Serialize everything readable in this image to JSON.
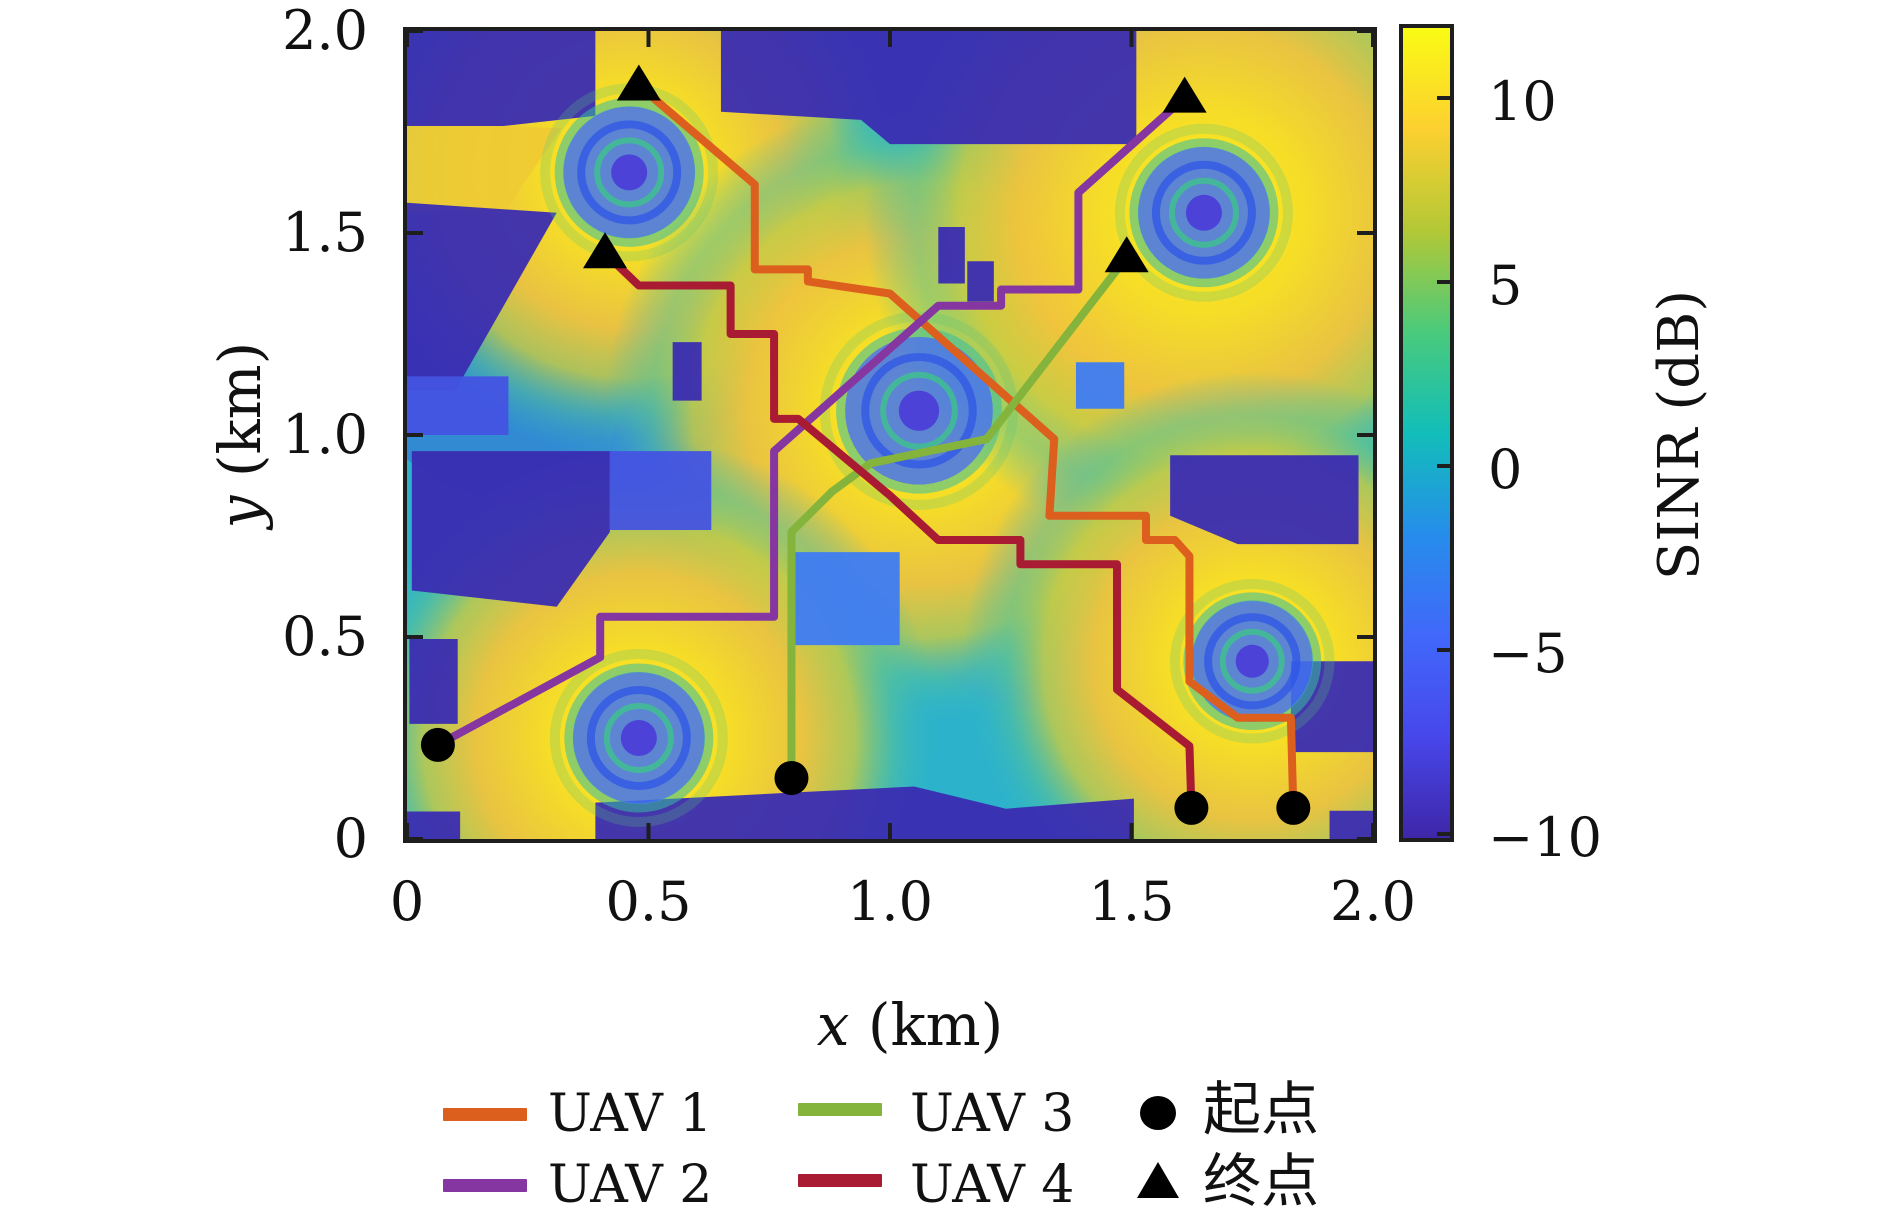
{
  "figure": {
    "x_axis_var": "x",
    "x_axis_unit": " (km)",
    "y_axis_var": "y",
    "y_axis_unit": " (km)"
  },
  "colorbar": {
    "label": "SINR (dB)",
    "vmin": -10,
    "vmax": 12,
    "ticks": [
      {
        "v": 10,
        "label": "10"
      },
      {
        "v": 5,
        "label": "5"
      },
      {
        "v": 0,
        "label": "0"
      },
      {
        "v": -5,
        "label": "−5"
      },
      {
        "v": -10,
        "label": "−10"
      }
    ],
    "parula_stops": [
      [
        0.0,
        "#3E26A8"
      ],
      [
        0.125,
        "#4747EB"
      ],
      [
        0.25,
        "#4168FA"
      ],
      [
        0.375,
        "#268DEB"
      ],
      [
        0.5,
        "#12BEB9"
      ],
      [
        0.625,
        "#4ACA7B"
      ],
      [
        0.75,
        "#B3C836"
      ],
      [
        0.875,
        "#FCD030"
      ],
      [
        1.0,
        "#F9FB14"
      ]
    ]
  },
  "legend": {
    "items": [
      {
        "label": "UAV 1",
        "color": "#DC5F1E"
      },
      {
        "label": "UAV 2",
        "color": "#8636A0"
      },
      {
        "label": "UAV 3",
        "color": "#84B43C"
      },
      {
        "label": "UAV 4",
        "color": "#A81B33"
      }
    ],
    "start_label": "起点",
    "end_label": "终点"
  },
  "chart_data": {
    "type": "heatmap",
    "title": "",
    "xlabel": "x (km)",
    "ylabel": "y (km)",
    "xlim": [
      0,
      2
    ],
    "ylim": [
      0,
      2
    ],
    "x_ticks": [
      {
        "v": 0,
        "label": "0"
      },
      {
        "v": 0.5,
        "label": "0.5"
      },
      {
        "v": 1.0,
        "label": "1.0"
      },
      {
        "v": 1.5,
        "label": "1.5"
      },
      {
        "v": 2.0,
        "label": "2.0"
      }
    ],
    "y_ticks": [
      {
        "v": 0,
        "label": "0"
      },
      {
        "v": 0.5,
        "label": "0.5"
      },
      {
        "v": 1.0,
        "label": "1.0"
      },
      {
        "v": 1.5,
        "label": "1.5"
      },
      {
        "v": 2.0,
        "label": "2.0"
      }
    ],
    "colorbar_label": "SINR (dB)",
    "colorbar_range": [
      -10,
      12
    ],
    "base_station_ring_centers_km": [
      {
        "x": 0.46,
        "y": 1.65,
        "scale": 1.0,
        "hot_radius_px": 285
      },
      {
        "x": 1.06,
        "y": 1.06,
        "scale": 1.12,
        "hot_radius_px": 315
      },
      {
        "x": 1.65,
        "y": 1.55,
        "scale": 1.0,
        "hot_radius_px": 340
      },
      {
        "x": 0.48,
        "y": 0.25,
        "scale": 1.0,
        "hot_radius_px": 300
      },
      {
        "x": 1.75,
        "y": 0.44,
        "scale": 0.92,
        "hot_radius_px": 290
      }
    ],
    "trajectories": [
      {
        "name": "UAV 1",
        "color": "#DC5F1E",
        "points_km": [
          [
            0.48,
            1.865
          ],
          [
            0.72,
            1.62
          ],
          [
            0.72,
            1.41
          ],
          [
            0.83,
            1.41
          ],
          [
            0.83,
            1.38
          ],
          [
            1.0,
            1.35
          ],
          [
            1.34,
            0.99
          ],
          [
            1.33,
            0.8
          ],
          [
            1.53,
            0.8
          ],
          [
            1.53,
            0.74
          ],
          [
            1.59,
            0.74
          ],
          [
            1.62,
            0.7
          ],
          [
            1.62,
            0.39
          ],
          [
            1.72,
            0.3
          ],
          [
            1.83,
            0.3
          ],
          [
            1.835,
            0.077
          ]
        ]
      },
      {
        "name": "UAV 2",
        "color": "#8636A0",
        "points_km": [
          [
            0.064,
            0.233
          ],
          [
            0.4,
            0.45
          ],
          [
            0.4,
            0.55
          ],
          [
            0.76,
            0.55
          ],
          [
            0.76,
            0.96
          ],
          [
            1.1,
            1.32
          ],
          [
            1.23,
            1.32
          ],
          [
            1.23,
            1.36
          ],
          [
            1.39,
            1.36
          ],
          [
            1.39,
            1.6
          ],
          [
            1.61,
            1.835
          ]
        ]
      },
      {
        "name": "UAV 3",
        "color": "#84B43C",
        "points_km": [
          [
            0.796,
            0.151
          ],
          [
            0.796,
            0.76
          ],
          [
            0.88,
            0.86
          ],
          [
            0.96,
            0.93
          ],
          [
            1.2,
            0.99
          ],
          [
            1.49,
            1.44
          ]
        ]
      },
      {
        "name": "UAV 4",
        "color": "#A81B33",
        "points_km": [
          [
            0.41,
            1.45
          ],
          [
            0.48,
            1.37
          ],
          [
            0.67,
            1.37
          ],
          [
            0.67,
            1.25
          ],
          [
            0.76,
            1.25
          ],
          [
            0.76,
            1.04
          ],
          [
            0.81,
            1.04
          ],
          [
            1.0,
            0.85
          ],
          [
            1.1,
            0.74
          ],
          [
            1.27,
            0.74
          ],
          [
            1.27,
            0.68
          ],
          [
            1.47,
            0.68
          ],
          [
            1.47,
            0.37
          ],
          [
            1.62,
            0.23
          ],
          [
            1.624,
            0.077
          ]
        ]
      }
    ],
    "start_points_km": [
      [
        1.835,
        0.077
      ],
      [
        0.064,
        0.233
      ],
      [
        0.796,
        0.151
      ],
      [
        1.624,
        0.077
      ]
    ],
    "end_points_km": [
      [
        0.48,
        1.865
      ],
      [
        1.61,
        1.835
      ],
      [
        1.49,
        1.44
      ],
      [
        0.41,
        1.45
      ]
    ],
    "shadow_regions_km": [
      {
        "tone": "dark",
        "pts": [
          [
            0,
            2
          ],
          [
            0.39,
            2
          ],
          [
            0.39,
            1.79
          ],
          [
            0.2,
            1.765
          ],
          [
            0,
            1.765
          ]
        ]
      },
      {
        "tone": "dark",
        "pts": [
          [
            0.65,
            2
          ],
          [
            1.51,
            2
          ],
          [
            1.51,
            1.72
          ],
          [
            1.0,
            1.72
          ],
          [
            0.94,
            1.78
          ],
          [
            0.65,
            1.8
          ]
        ]
      },
      {
        "tone": "dark",
        "pts": [
          [
            0,
            1.575
          ],
          [
            0.31,
            1.55
          ],
          [
            0.1,
            1.11
          ],
          [
            0,
            1.11
          ]
        ]
      },
      {
        "tone": "dark",
        "pts": [
          [
            0.55,
            1.23
          ],
          [
            0.61,
            1.23
          ],
          [
            0.61,
            1.085
          ],
          [
            0.55,
            1.085
          ]
        ]
      },
      {
        "tone": "dark",
        "pts": [
          [
            1.1,
            1.515
          ],
          [
            1.155,
            1.515
          ],
          [
            1.155,
            1.375
          ],
          [
            1.1,
            1.375
          ]
        ]
      },
      {
        "tone": "dark",
        "pts": [
          [
            1.16,
            1.43
          ],
          [
            1.215,
            1.43
          ],
          [
            1.215,
            1.33
          ],
          [
            1.16,
            1.33
          ]
        ]
      },
      {
        "tone": "light",
        "pts": [
          [
            1.385,
            1.18
          ],
          [
            1.485,
            1.18
          ],
          [
            1.485,
            1.065
          ],
          [
            1.385,
            1.065
          ]
        ]
      },
      {
        "tone": "mid",
        "pts": [
          [
            0,
            1.145
          ],
          [
            0.21,
            1.145
          ],
          [
            0.21,
            1.0
          ],
          [
            0,
            1.0
          ]
        ]
      },
      {
        "tone": "dark",
        "pts": [
          [
            0.01,
            0.96
          ],
          [
            0.42,
            0.96
          ],
          [
            0.42,
            0.76
          ],
          [
            0.31,
            0.575
          ],
          [
            0.01,
            0.615
          ]
        ]
      },
      {
        "tone": "mid",
        "pts": [
          [
            0.42,
            0.96
          ],
          [
            0.63,
            0.96
          ],
          [
            0.63,
            0.765
          ],
          [
            0.42,
            0.765
          ]
        ]
      },
      {
        "tone": "dark",
        "pts": [
          [
            0.005,
            0.495
          ],
          [
            0.105,
            0.495
          ],
          [
            0.105,
            0.285
          ],
          [
            0.005,
            0.285
          ]
        ]
      },
      {
        "tone": "dark",
        "pts": [
          [
            0,
            0.068
          ],
          [
            0.11,
            0.068
          ],
          [
            0.11,
            0
          ],
          [
            0,
            0
          ]
        ]
      },
      {
        "tone": "light",
        "pts": [
          [
            0.8,
            0.71
          ],
          [
            1.02,
            0.71
          ],
          [
            1.02,
            0.48
          ],
          [
            0.8,
            0.48
          ]
        ]
      },
      {
        "tone": "dark",
        "pts": [
          [
            0.39,
            0.09
          ],
          [
            0.8,
            0.115
          ],
          [
            1.05,
            0.13
          ],
          [
            1.24,
            0.075
          ],
          [
            1.505,
            0.1
          ],
          [
            1.505,
            0
          ],
          [
            0.39,
            0
          ]
        ]
      },
      {
        "tone": "dark",
        "pts": [
          [
            1.58,
            0.95
          ],
          [
            1.97,
            0.95
          ],
          [
            1.97,
            0.73
          ],
          [
            1.72,
            0.73
          ],
          [
            1.58,
            0.8
          ]
        ]
      },
      {
        "tone": "dark",
        "pts": [
          [
            1.83,
            0.44
          ],
          [
            2,
            0.44
          ],
          [
            2,
            0.215
          ],
          [
            1.83,
            0.215
          ]
        ]
      },
      {
        "tone": "dark",
        "pts": [
          [
            1.91,
            0.07
          ],
          [
            2,
            0.07
          ],
          [
            2,
            0
          ],
          [
            1.91,
            0
          ]
        ]
      }
    ],
    "shadow_tones": {
      "dark": "#3A2CB2",
      "mid": "#4353E2",
      "light": "#3E7CF3"
    },
    "soft_blue_zones_km": [
      {
        "x": 0.3,
        "y": 1.22,
        "rx": 0.42,
        "ry": 0.4,
        "color": "#3D49DC",
        "opacity": 0.38
      },
      {
        "x": 0.72,
        "y": 0.95,
        "rx": 0.3,
        "ry": 0.28,
        "color": "#3E6FE8",
        "opacity": 0.3
      },
      {
        "x": 1.32,
        "y": 0.62,
        "rx": 0.3,
        "ry": 0.3,
        "color": "#3FA0E0",
        "opacity": 0.3
      }
    ],
    "yellow_wedge_km": [
      [
        0,
        1.77
      ],
      [
        0.32,
        1.76
      ],
      [
        0.2,
        1.55
      ],
      [
        0,
        1.55
      ]
    ]
  }
}
